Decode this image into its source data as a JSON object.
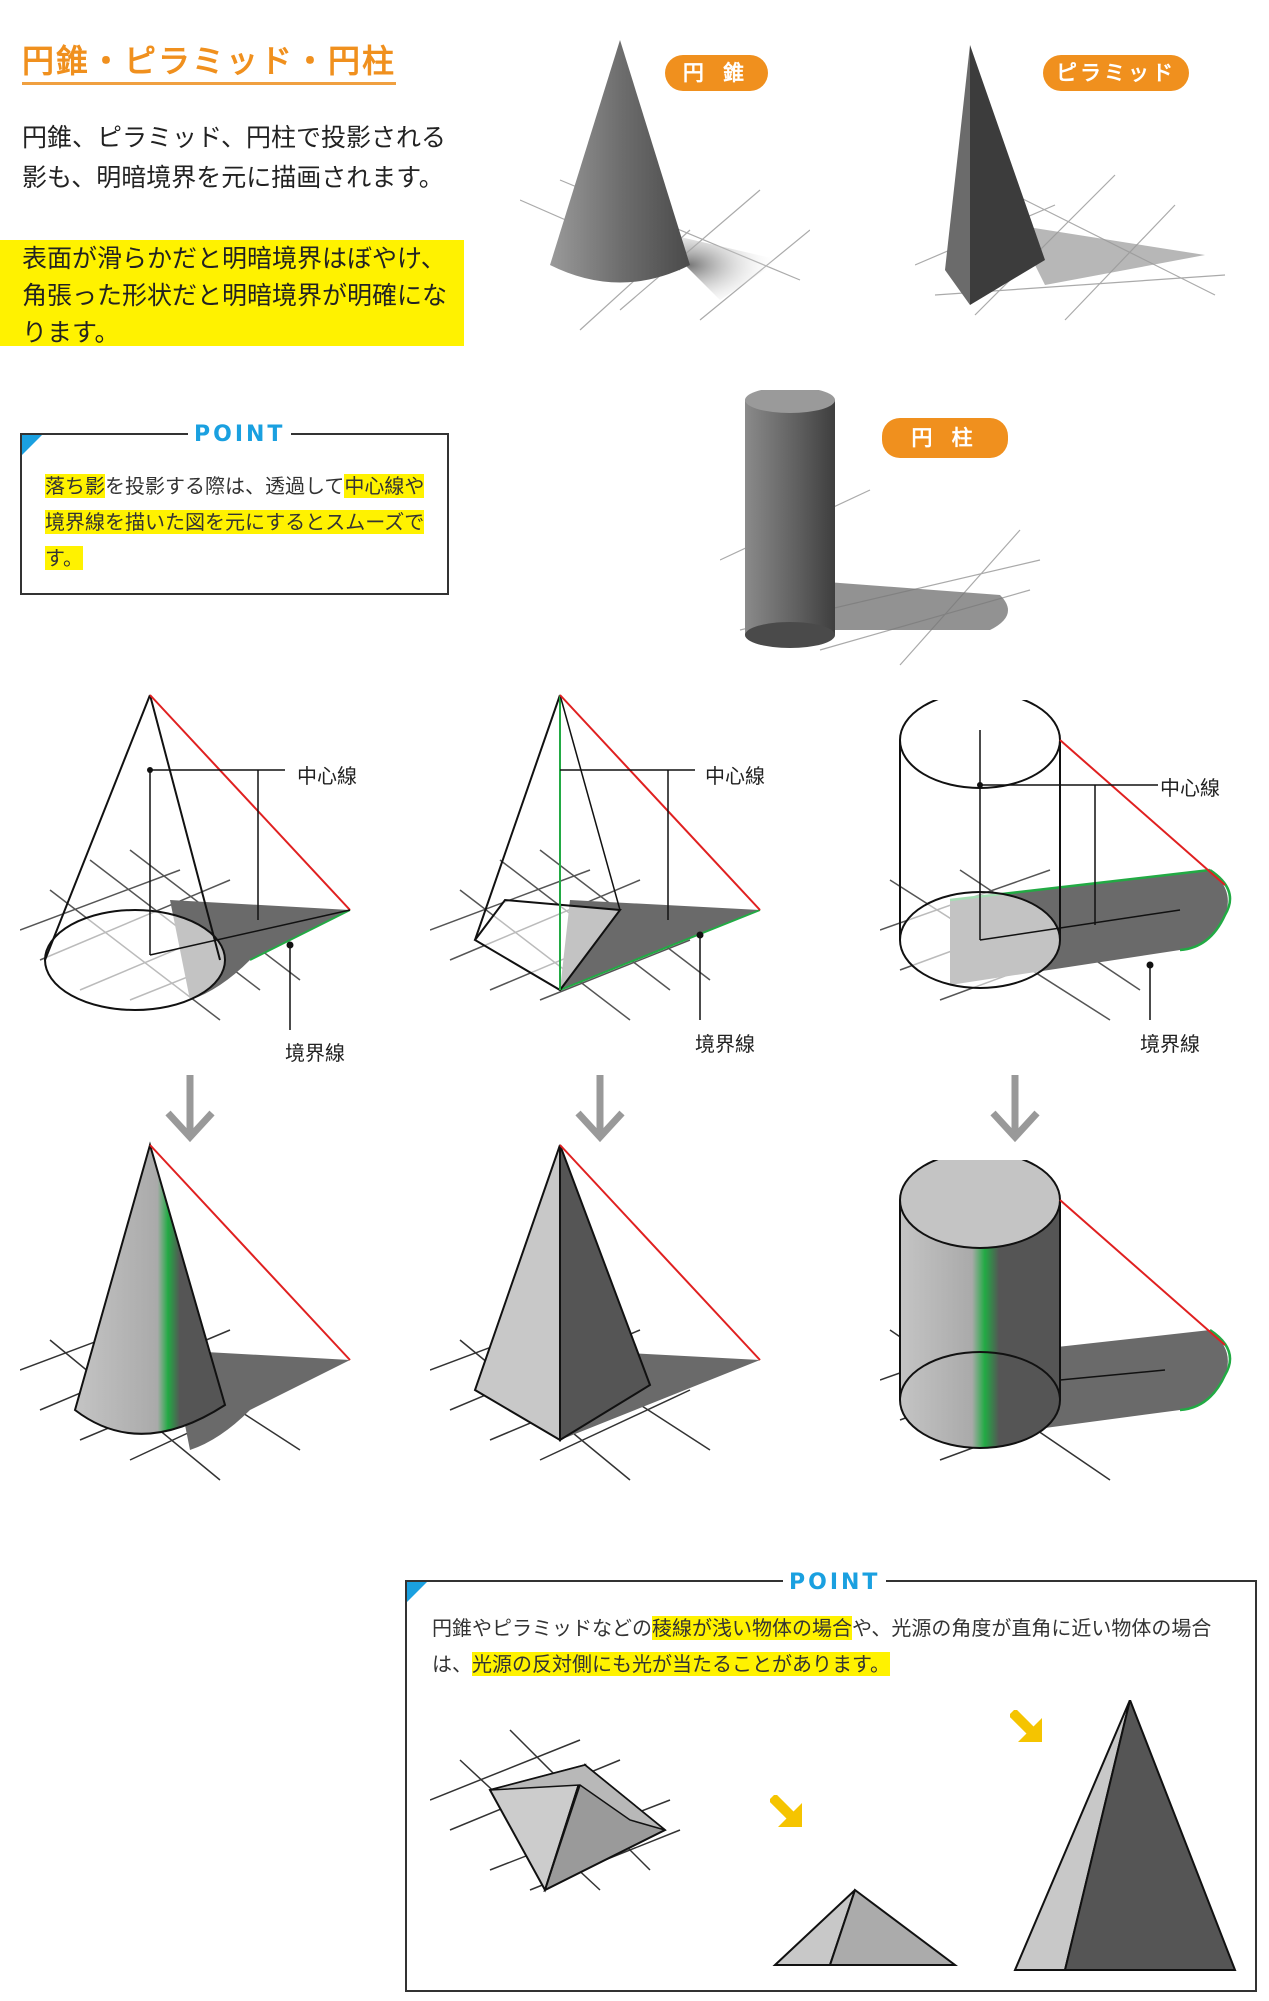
{
  "title": "円錐・ピラミッド・円柱",
  "intro": "円錐、ピラミッド、円柱で投影される影も、明暗境界を元に描画されます。",
  "intro_highlight": "表面が滑らかだと明暗境界はぼやけ、角張った形状だと明暗境界が明確になります。",
  "tags": {
    "cone": "円 錐",
    "pyramid": "ピラミッド",
    "cylinder": "円 柱"
  },
  "point1": {
    "label": "POINT",
    "text_pre": "落ち影",
    "text_mid": "を投影する際は、透過して",
    "text_hl": "中心線や境界線を描いた図を元にするとスムーズです。"
  },
  "diagram_labels": {
    "center_line": "中心線",
    "boundary_line": "境界線"
  },
  "point2": {
    "label": "POINT",
    "text_a": "円錐やピラミッドなどの",
    "text_hl1": "稜線が浅い物体の場合",
    "text_b": "や、光源の角度が直角に近い物体の場合は、",
    "text_hl2": "光源の反対側にも光が当たることがあります。"
  },
  "colors": {
    "accent": "#f0901e",
    "point_blue": "#1aa0e0",
    "highlight": "#fff200",
    "shadow_line": "#e02020",
    "boundary": "#22aa44"
  }
}
